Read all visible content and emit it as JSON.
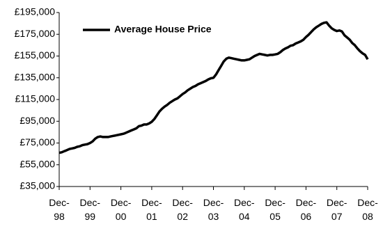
{
  "chart_data": {
    "type": "line",
    "categories": [
      "Dec-98",
      null,
      null,
      null,
      null,
      null,
      null,
      null,
      null,
      null,
      null,
      null,
      "Dec-99",
      null,
      null,
      null,
      null,
      null,
      null,
      null,
      null,
      null,
      null,
      null,
      "Dec-00",
      null,
      null,
      null,
      null,
      null,
      null,
      null,
      null,
      null,
      null,
      null,
      "Dec-01",
      null,
      null,
      null,
      null,
      null,
      null,
      null,
      null,
      null,
      null,
      null,
      "Dec-02",
      null,
      null,
      null,
      null,
      null,
      null,
      null,
      null,
      null,
      null,
      null,
      "Dec-03",
      null,
      null,
      null,
      null,
      null,
      null,
      null,
      null,
      null,
      null,
      null,
      "Dec-04",
      null,
      null,
      null,
      null,
      null,
      null,
      null,
      null,
      null,
      null,
      null,
      "Dec-05",
      null,
      null,
      null,
      null,
      null,
      null,
      null,
      null,
      null,
      null,
      null,
      "Dec-06",
      null,
      null,
      null,
      null,
      null,
      null,
      null,
      null,
      null,
      null,
      null,
      "Dec-07",
      null,
      null,
      null,
      null,
      null,
      null,
      null,
      null,
      null,
      null,
      null,
      "Dec-08"
    ],
    "series": [
      {
        "name": "Average House Price",
        "color": "#000000",
        "values": [
          66000,
          66500,
          67500,
          68500,
          69500,
          70000,
          70500,
          71500,
          72000,
          73000,
          73500,
          74000,
          75000,
          76500,
          79000,
          80500,
          81000,
          80500,
          80500,
          80500,
          81000,
          81500,
          82000,
          82500,
          83000,
          83500,
          84500,
          85500,
          86500,
          87500,
          88500,
          90500,
          91000,
          92000,
          92000,
          93000,
          94500,
          97000,
          100500,
          104000,
          106500,
          108500,
          110000,
          112000,
          113500,
          115000,
          116000,
          118000,
          120000,
          121500,
          123500,
          125000,
          126500,
          127500,
          129000,
          130000,
          131000,
          132000,
          133500,
          134500,
          135000,
          138000,
          142000,
          146000,
          150000,
          152500,
          153500,
          153000,
          152500,
          152000,
          151500,
          151000,
          151000,
          151500,
          152000,
          153500,
          155000,
          156000,
          157000,
          156500,
          156000,
          155500,
          156000,
          156000,
          156500,
          157000,
          158500,
          160500,
          162000,
          163000,
          164500,
          165000,
          166500,
          167500,
          168500,
          170000,
          172500,
          174500,
          177000,
          179500,
          181500,
          183000,
          184500,
          185500,
          186000,
          183000,
          180500,
          179000,
          178000,
          178500,
          177500,
          174000,
          172000,
          170000,
          167000,
          165000,
          162000,
          159500,
          157500,
          156000,
          152000
        ]
      }
    ],
    "ylim": [
      35000,
      195000
    ],
    "yticks": [
      {
        "value": 35000,
        "label": "£35,000"
      },
      {
        "value": 55000,
        "label": "£55,000"
      },
      {
        "value": 75000,
        "label": "£75,000"
      },
      {
        "value": 95000,
        "label": "£95,000"
      },
      {
        "value": 115000,
        "label": "£115,000"
      },
      {
        "value": 135000,
        "label": "£135,000"
      },
      {
        "value": 155000,
        "label": "£155,000"
      },
      {
        "value": 175000,
        "label": "£175,000"
      },
      {
        "value": 195000,
        "label": "£195,000"
      }
    ],
    "grid": false,
    "legend": "upper-left"
  }
}
